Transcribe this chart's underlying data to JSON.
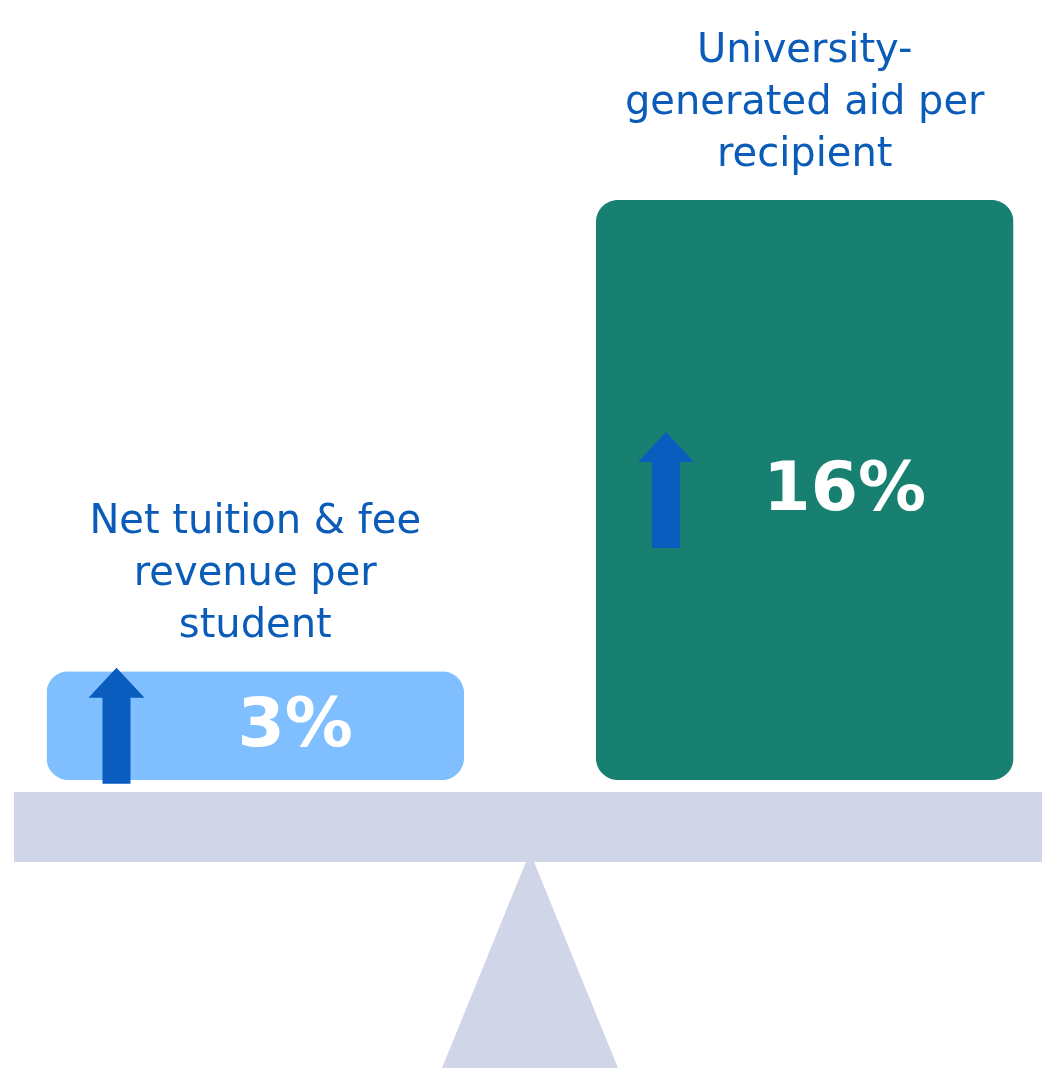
{
  "chart_data": {
    "type": "bar",
    "categories": [
      "Net tuition & fee revenue per student",
      "University-generated aid per recipient"
    ],
    "values": [
      3,
      16
    ],
    "colors": [
      "#80bfff",
      "#178070"
    ],
    "value_labels": [
      "3%",
      "16%"
    ]
  }
}
